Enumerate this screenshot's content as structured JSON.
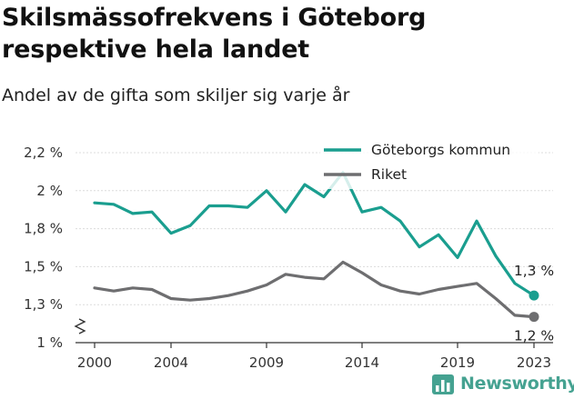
{
  "header": {
    "title_line1": "Skilsmässofrekvens i Göteborg",
    "title_line2": "respektive hela landet",
    "subtitle": "Andel av de gifta som skiljer sig varje år"
  },
  "brand": {
    "name": "Newsworthy",
    "icon": "bar-chart-logo-icon",
    "color": "#45a291"
  },
  "chart_data": {
    "type": "line",
    "y_tick_labels": [
      "1 %",
      "1,3 %",
      "1,5 %",
      "1,8 %",
      "2 %",
      "2,2 %"
    ],
    "y_tick_values": [
      1.0,
      1.25,
      1.5,
      1.75,
      2.0,
      2.25
    ],
    "x_tick_labels": [
      "2000",
      "2004",
      "2009",
      "2014",
      "2019",
      "2023"
    ],
    "x_tick_values": [
      2000,
      2004,
      2009,
      2014,
      2019,
      2023
    ],
    "xlim": [
      1999,
      2024
    ],
    "ylim": [
      1.0,
      2.25
    ],
    "axis_break": true,
    "grid": "horizontal",
    "legend_position": "top-right",
    "series": [
      {
        "name": "Göteborgs kommun",
        "color": "#1a9e8f",
        "x": [
          2000,
          2001,
          2002,
          2003,
          2004,
          2005,
          2006,
          2007,
          2008,
          2009,
          2010,
          2011,
          2012,
          2013,
          2014,
          2015,
          2016,
          2017,
          2018,
          2019,
          2020,
          2021,
          2022,
          2023
        ],
        "values": [
          1.92,
          1.91,
          1.85,
          1.86,
          1.72,
          1.77,
          1.9,
          1.9,
          1.89,
          2.0,
          1.86,
          2.04,
          1.96,
          2.12,
          1.86,
          1.89,
          1.8,
          1.63,
          1.71,
          1.56,
          1.8,
          1.57,
          1.39,
          1.31
        ],
        "end_label": "1,3 %"
      },
      {
        "name": "Riket",
        "color": "#6e6e70",
        "x": [
          2000,
          2001,
          2002,
          2003,
          2004,
          2005,
          2006,
          2007,
          2008,
          2009,
          2010,
          2011,
          2012,
          2013,
          2014,
          2015,
          2016,
          2017,
          2018,
          2019,
          2020,
          2021,
          2022,
          2023
        ],
        "values": [
          1.36,
          1.34,
          1.36,
          1.35,
          1.29,
          1.28,
          1.29,
          1.31,
          1.34,
          1.38,
          1.45,
          1.43,
          1.42,
          1.53,
          1.46,
          1.38,
          1.34,
          1.32,
          1.35,
          1.37,
          1.39,
          1.29,
          1.18,
          1.17
        ],
        "end_label": "1,2 %"
      }
    ]
  }
}
